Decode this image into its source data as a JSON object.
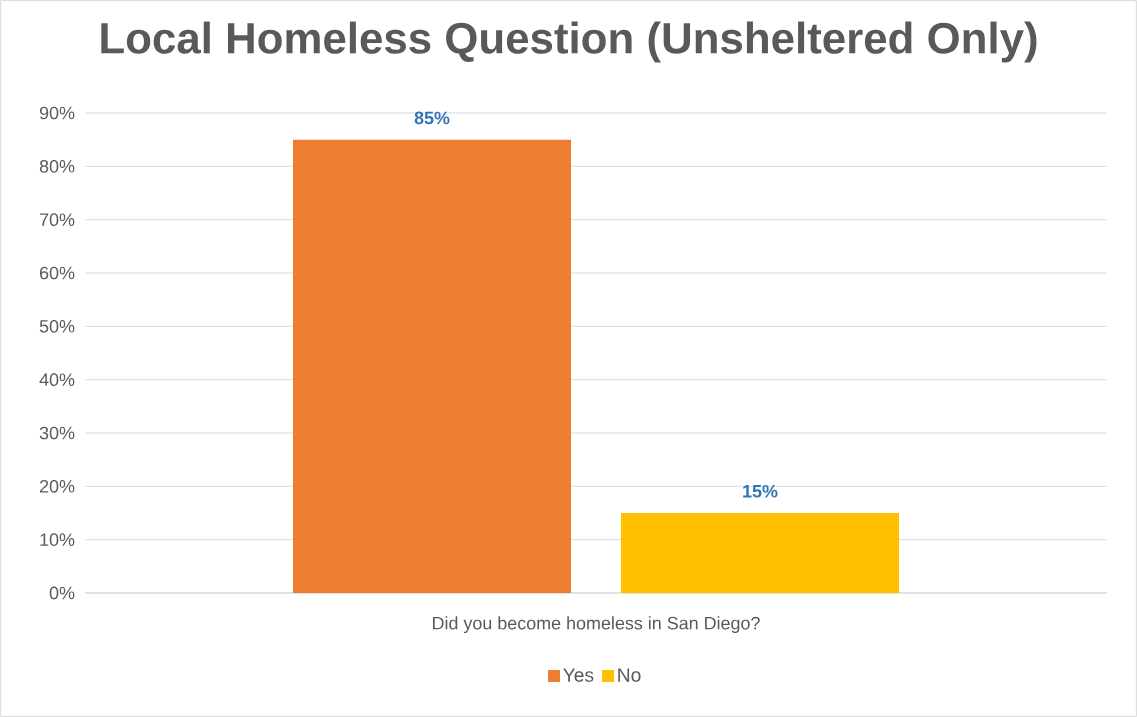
{
  "chart_data": {
    "type": "bar",
    "title": "Local Homeless Question (Unsheltered Only)",
    "categories": [
      "Did you become homeless in San Diego?"
    ],
    "series": [
      {
        "name": "Yes",
        "color": "#ed7d31",
        "values": [
          85
        ],
        "value_labels": [
          "85%"
        ]
      },
      {
        "name": "No",
        "color": "#ffc000",
        "values": [
          15
        ],
        "value_labels": [
          "15%"
        ]
      }
    ],
    "ylim": [
      0,
      90
    ],
    "yticks": [
      {
        "value": 0,
        "label": "0%"
      },
      {
        "value": 10,
        "label": "10%"
      },
      {
        "value": 20,
        "label": "20%"
      },
      {
        "value": 30,
        "label": "30%"
      },
      {
        "value": 40,
        "label": "40%"
      },
      {
        "value": 50,
        "label": "50%"
      },
      {
        "value": 60,
        "label": "60%"
      },
      {
        "value": 70,
        "label": "70%"
      },
      {
        "value": 80,
        "label": "80%"
      },
      {
        "value": 90,
        "label": "90%"
      }
    ],
    "grid": "y",
    "legend": "bottom"
  }
}
